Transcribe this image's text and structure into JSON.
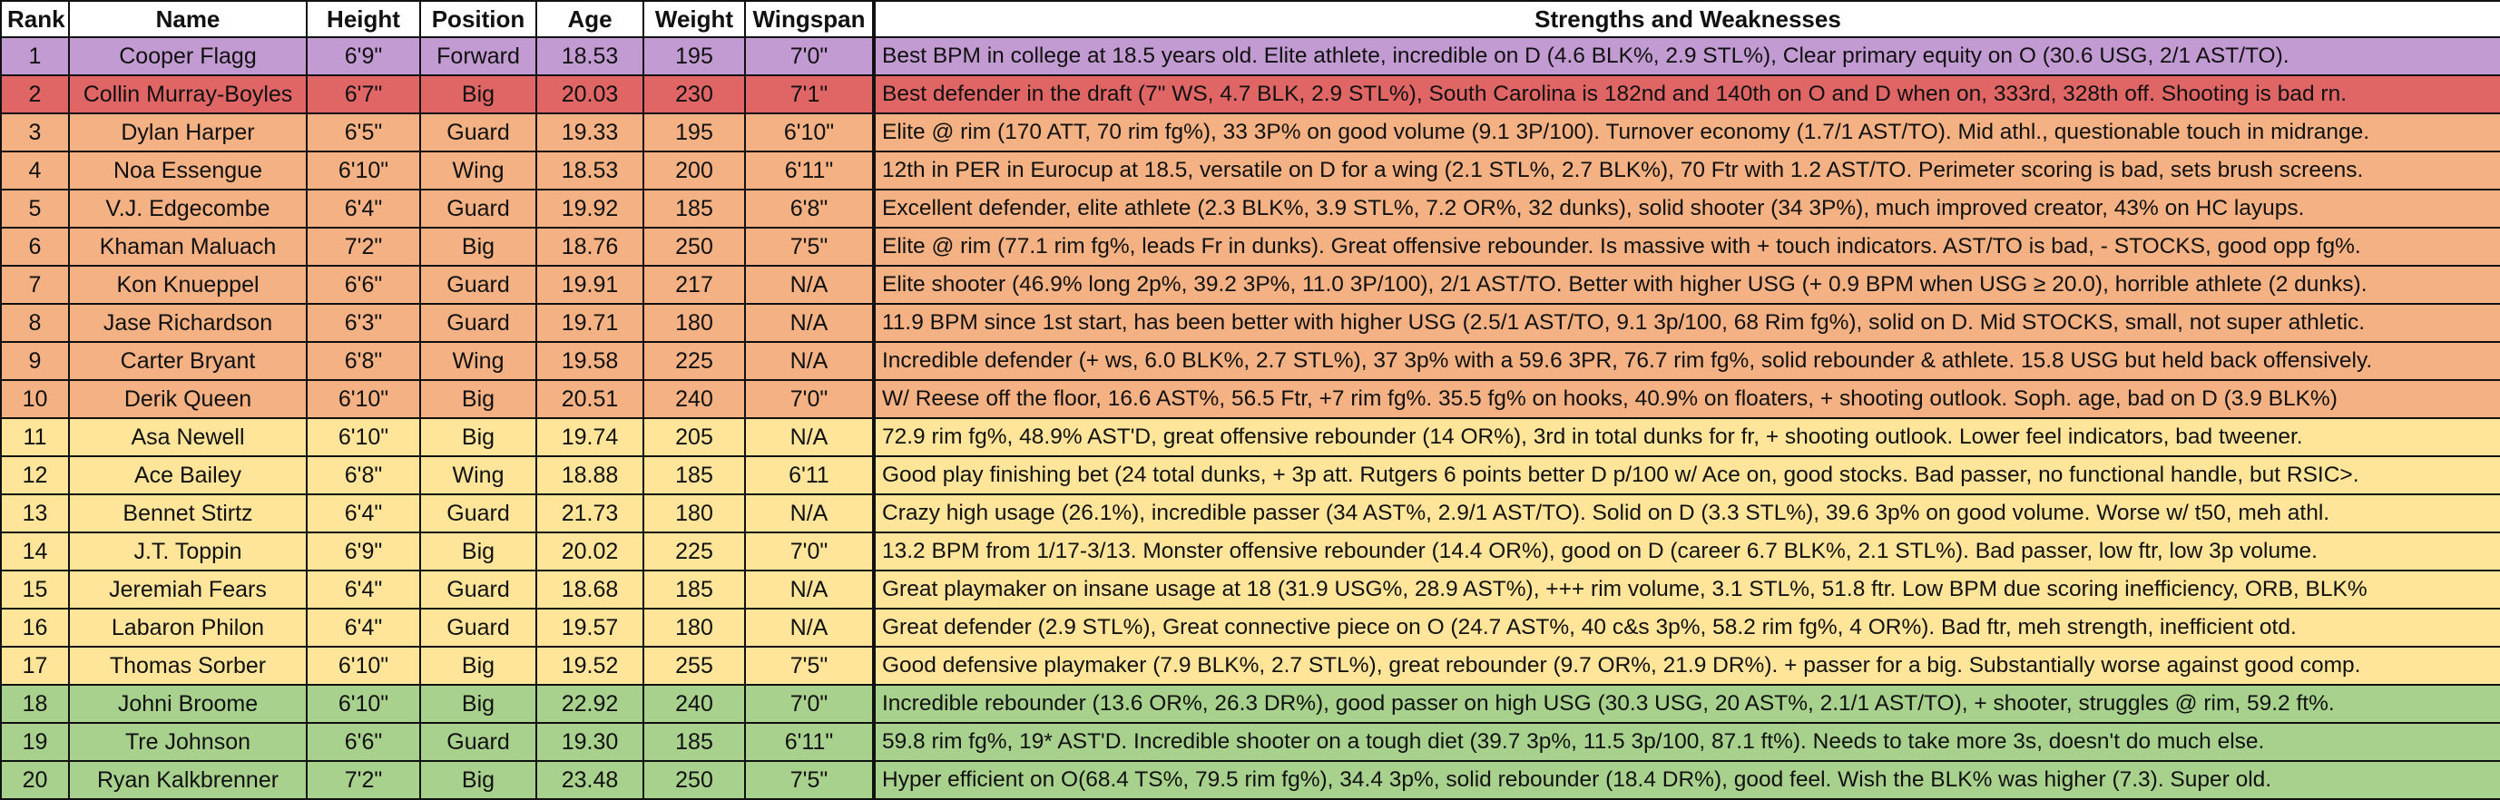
{
  "headers": {
    "rank": "Rank",
    "name": "Name",
    "height": "Height",
    "position": "Position",
    "age": "Age",
    "weight": "Weight",
    "wingspan": "Wingspan",
    "notes": "Strengths and Weaknesses"
  },
  "tier_colors": {
    "purple": "#c39bd3",
    "red": "#e06666",
    "orange": "#f4b183",
    "yellow": "#ffe599",
    "green": "#a9d18e"
  },
  "rows": [
    {
      "rank": "1",
      "name": "Cooper Flagg",
      "height": "6'9\"",
      "position": "Forward",
      "age": "18.53",
      "weight": "195",
      "wingspan": "7'0\"",
      "notes": "Best BPM in college at 18.5 years old. Elite athlete, incredible on D (4.6 BLK%, 2.9 STL%), Clear primary equity on O (30.6 USG, 2/1 AST/TO).",
      "tier": "purple"
    },
    {
      "rank": "2",
      "name": "Collin Murray-Boyles",
      "height": "6'7\"",
      "position": "Big",
      "age": "20.03",
      "weight": "230",
      "wingspan": "7'1\"",
      "notes": "Best defender in the draft (7\" WS, 4.7 BLK, 2.9 STL%), South Carolina is 182nd and 140th on O and D when on, 333rd, 328th off. Shooting is bad rn.",
      "tier": "red"
    },
    {
      "rank": "3",
      "name": "Dylan Harper",
      "height": "6'5\"",
      "position": "Guard",
      "age": "19.33",
      "weight": "195",
      "wingspan": "6'10\"",
      "notes": "Elite @ rim (170 ATT, 70 rim fg%), 33 3P% on good volume (9.1 3P/100). Turnover economy (1.7/1 AST/TO). Mid athl., questionable touch in midrange.",
      "tier": "orange"
    },
    {
      "rank": "4",
      "name": "Noa Essengue",
      "height": "6'10\"",
      "position": "Wing",
      "age": "18.53",
      "weight": "200",
      "wingspan": "6'11\"",
      "notes": "12th in PER in Eurocup at 18.5, versatile on D for a wing (2.1 STL%, 2.7 BLK%), 70 Ftr with 1.2 AST/TO. Perimeter scoring is bad, sets brush screens.",
      "tier": "orange"
    },
    {
      "rank": "5",
      "name": "V.J. Edgecombe",
      "height": "6'4\"",
      "position": "Guard",
      "age": "19.92",
      "weight": "185",
      "wingspan": "6'8\"",
      "notes": "Excellent defender, elite athlete (2.3 BLK%, 3.9 STL%, 7.2 OR%, 32 dunks), solid shooter (34 3P%), much improved creator, 43% on HC layups.",
      "tier": "orange"
    },
    {
      "rank": "6",
      "name": "Khaman Maluach",
      "height": "7'2\"",
      "position": "Big",
      "age": "18.76",
      "weight": "250",
      "wingspan": "7'5\"",
      "notes": "Elite @ rim (77.1 rim fg%, leads Fr in dunks). Great offensive rebounder. Is massive with + touch indicators. AST/TO is bad, - STOCKS, good opp fg%.",
      "tier": "orange"
    },
    {
      "rank": "7",
      "name": "Kon Knueppel",
      "height": "6'6\"",
      "position": "Guard",
      "age": "19.91",
      "weight": "217",
      "wingspan": "N/A",
      "notes": "Elite shooter (46.9% long 2p%, 39.2 3P%, 11.0 3P/100), 2/1 AST/TO. Better with higher USG (+ 0.9 BPM when USG ≥ 20.0), horrible athlete (2 dunks).",
      "tier": "orange"
    },
    {
      "rank": "8",
      "name": "Jase Richardson",
      "height": "6'3\"",
      "position": "Guard",
      "age": "19.71",
      "weight": "180",
      "wingspan": "N/A",
      "notes": "11.9 BPM since 1st start, has been better with higher USG (2.5/1 AST/TO, 9.1 3p/100, 68 Rim fg%), solid on D. Mid STOCKS, small, not super athletic.",
      "tier": "orange"
    },
    {
      "rank": "9",
      "name": "Carter Bryant",
      "height": "6'8\"",
      "position": "Wing",
      "age": "19.58",
      "weight": "225",
      "wingspan": "N/A",
      "notes": "Incredible defender (+ ws, 6.0 BLK%, 2.7 STL%), 37 3p% with a 59.6 3PR, 76.7 rim fg%, solid rebounder & athlete. 15.8 USG but held back offensively.",
      "tier": "orange"
    },
    {
      "rank": "10",
      "name": "Derik Queen",
      "height": "6'10\"",
      "position": "Big",
      "age": "20.51",
      "weight": "240",
      "wingspan": "7'0\"",
      "notes": "W/ Reese off the floor, 16.6 AST%, 56.5 Ftr, +7 rim fg%. 35.5 fg% on hooks, 40.9% on floaters, + shooting outlook. Soph. age, bad on D (3.9 BLK%)",
      "tier": "orange"
    },
    {
      "rank": "11",
      "name": "Asa Newell",
      "height": "6'10\"",
      "position": "Big",
      "age": "19.74",
      "weight": "205",
      "wingspan": "N/A",
      "notes": "72.9 rim fg%, 48.9% AST'D, great offensive rebounder (14 OR%), 3rd in total dunks for fr, + shooting outlook. Lower feel indicators, bad tweener.",
      "tier": "yellow"
    },
    {
      "rank": "12",
      "name": "Ace Bailey",
      "height": "6'8\"",
      "position": "Wing",
      "age": "18.88",
      "weight": "185",
      "wingspan": "6'11",
      "notes": "Good play finishing bet (24 total dunks, + 3p att. Rutgers 6 points better D p/100 w/ Ace on, good stocks. Bad passer, no functional handle, but RSIC>.",
      "tier": "yellow"
    },
    {
      "rank": "13",
      "name": "Bennet Stirtz",
      "height": "6'4\"",
      "position": "Guard",
      "age": "21.73",
      "weight": "180",
      "wingspan": "N/A",
      "notes": "Crazy high usage (26.1%), incredible passer (34 AST%, 2.9/1 AST/TO). Solid on D (3.3 STL%), 39.6 3p% on good volume. Worse w/ t50, meh athl.",
      "tier": "yellow"
    },
    {
      "rank": "14",
      "name": "J.T. Toppin",
      "height": "6'9\"",
      "position": "Big",
      "age": "20.02",
      "weight": "225",
      "wingspan": "7'0\"",
      "notes": "13.2 BPM from 1/17-3/13. Monster offensive rebounder (14.4 OR%), good on D (career 6.7 BLK%, 2.1 STL%). Bad passer, low ftr, low 3p volume.",
      "tier": "yellow"
    },
    {
      "rank": "15",
      "name": "Jeremiah Fears",
      "height": "6'4\"",
      "position": "Guard",
      "age": "18.68",
      "weight": "185",
      "wingspan": "N/A",
      "notes": "Great playmaker on insane usage at 18 (31.9 USG%, 28.9 AST%), +++ rim volume, 3.1 STL%, 51.8 ftr. Low BPM due scoring inefficiency, ORB, BLK%",
      "tier": "yellow"
    },
    {
      "rank": "16",
      "name": "Labaron Philon",
      "height": "6'4\"",
      "position": "Guard",
      "age": "19.57",
      "weight": "180",
      "wingspan": "N/A",
      "notes": "Great defender (2.9 STL%), Great connective piece on O (24.7 AST%, 40 c&s 3p%, 58.2 rim fg%, 4 OR%). Bad ftr, meh strength, inefficient otd.",
      "tier": "yellow"
    },
    {
      "rank": "17",
      "name": "Thomas Sorber",
      "height": "6'10\"",
      "position": "Big",
      "age": "19.52",
      "weight": "255",
      "wingspan": "7'5\"",
      "notes": "Good defensive playmaker (7.9 BLK%, 2.7 STL%), great rebounder (9.7 OR%, 21.9 DR%). + passer for a big. Substantially worse against good comp.",
      "tier": "yellow"
    },
    {
      "rank": "18",
      "name": "Johni Broome",
      "height": "6'10\"",
      "position": "Big",
      "age": "22.92",
      "weight": "240",
      "wingspan": "7'0\"",
      "notes": "Incredible rebounder (13.6 OR%, 26.3 DR%), good passer on high USG (30.3 USG, 20 AST%, 2.1/1 AST/TO), + shooter, struggles @ rim, 59.2 ft%.",
      "tier": "green"
    },
    {
      "rank": "19",
      "name": "Tre Johnson",
      "height": "6'6\"",
      "position": "Guard",
      "age": "19.30",
      "weight": "185",
      "wingspan": "6'11\"",
      "notes": "59.8 rim fg%, 19* AST'D. Incredible shooter on a tough diet (39.7 3p%, 11.5 3p/100, 87.1 ft%). Needs to take more 3s, doesn't do much else.",
      "tier": "green"
    },
    {
      "rank": "20",
      "name": "Ryan Kalkbrenner",
      "height": "7'2\"",
      "position": "Big",
      "age": "23.48",
      "weight": "250",
      "wingspan": "7'5\"",
      "notes": "Hyper efficient on O(68.4 TS%, 79.5 rim fg%), 34.4 3p%, solid rebounder (18.4 DR%), good feel. Wish the BLK% was higher (7.3). Super old.",
      "tier": "green"
    }
  ]
}
